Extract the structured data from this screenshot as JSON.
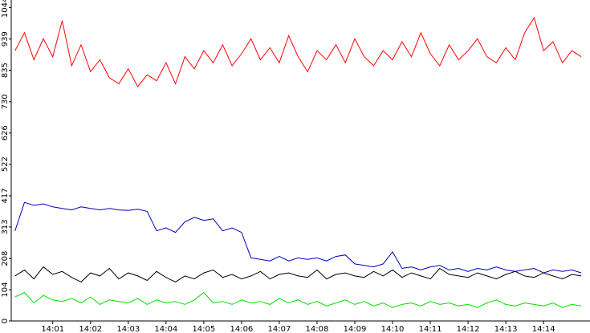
{
  "chart_data": {
    "type": "line",
    "x": [
      0,
      0.25,
      0.5,
      0.75,
      1,
      1.25,
      1.5,
      1.75,
      2,
      2.25,
      2.5,
      2.75,
      3,
      3.25,
      3.5,
      3.75,
      4,
      4.25,
      4.5,
      4.75,
      5,
      5.25,
      5.5,
      5.75,
      6,
      6.25,
      6.5,
      6.75,
      7,
      7.25,
      7.5,
      7.75,
      8,
      8.25,
      8.5,
      8.75,
      9,
      9.25,
      9.5,
      9.75,
      10,
      10.25,
      10.5,
      10.75,
      11,
      11.25,
      11.5,
      11.75,
      12,
      12.25,
      12.5,
      12.75,
      13,
      13.25,
      13.5,
      13.75,
      14,
      14.25,
      14.5,
      14.75,
      15
    ],
    "series": [
      {
        "color": "#ff0000",
        "values": [
          900,
          960,
          870,
          940,
          880,
          1000,
          850,
          920,
          830,
          870,
          810,
          790,
          840,
          780,
          820,
          800,
          860,
          790,
          880,
          840,
          900,
          860,
          920,
          850,
          890,
          940,
          870,
          910,
          860,
          950,
          880,
          830,
          900,
          870,
          920,
          860,
          940,
          880,
          850,
          900,
          870,
          930,
          880,
          960,
          890,
          850,
          920,
          870,
          900,
          940,
          880,
          860,
          910,
          870,
          960,
          1010,
          900,
          930,
          860,
          900,
          880
        ]
      },
      {
        "color": "#0000c0",
        "values": [
          300,
          395,
          385,
          390,
          380,
          375,
          370,
          380,
          375,
          370,
          375,
          370,
          368,
          372,
          365,
          300,
          310,
          295,
          330,
          345,
          335,
          340,
          300,
          310,
          295,
          210,
          205,
          200,
          215,
          200,
          210,
          205,
          210,
          200,
          215,
          220,
          190,
          185,
          180,
          190,
          230,
          175,
          180,
          170,
          180,
          185,
          170,
          175,
          165,
          175,
          170,
          180,
          170,
          165,
          170,
          175,
          160,
          170,
          165,
          170,
          160
        ]
      },
      {
        "color": "#000000",
        "values": [
          150,
          170,
          140,
          180,
          155,
          165,
          145,
          130,
          160,
          150,
          175,
          140,
          160,
          150,
          135,
          165,
          145,
          130,
          150,
          140,
          160,
          170,
          145,
          155,
          140,
          150,
          165,
          140,
          155,
          160,
          150,
          145,
          170,
          140,
          155,
          160,
          150,
          145,
          165,
          150,
          170,
          145,
          160,
          150,
          140,
          175,
          155,
          150,
          145,
          160,
          150,
          140,
          155,
          165,
          150,
          145,
          160,
          150,
          140,
          155,
          150
        ]
      },
      {
        "color": "#00e000",
        "values": [
          80,
          95,
          60,
          85,
          70,
          65,
          75,
          60,
          80,
          55,
          70,
          65,
          60,
          75,
          55,
          70,
          60,
          65,
          55,
          70,
          95,
          60,
          65,
          55,
          70,
          60,
          65,
          55,
          75,
          60,
          70,
          55,
          65,
          50,
          60,
          70,
          55,
          65,
          50,
          60,
          45,
          55,
          60,
          50,
          65,
          55,
          60,
          50,
          55,
          45,
          60,
          70,
          55,
          50,
          60,
          55,
          50,
          60,
          45,
          55,
          50
        ]
      }
    ],
    "xlim": [
      -0.1,
      15.23
    ],
    "xticks": [
      {
        "value": 1,
        "label": "14:01"
      },
      {
        "value": 2,
        "label": "14:02"
      },
      {
        "value": 3,
        "label": "14:03"
      },
      {
        "value": 4,
        "label": "14:04"
      },
      {
        "value": 5,
        "label": "14:05"
      },
      {
        "value": 6,
        "label": "14:06"
      },
      {
        "value": 7,
        "label": "14:07"
      },
      {
        "value": 8,
        "label": "14:08"
      },
      {
        "value": 9,
        "label": "14:09"
      },
      {
        "value": 10,
        "label": "14:10"
      },
      {
        "value": 11,
        "label": "14:11"
      },
      {
        "value": 12,
        "label": "14:12"
      },
      {
        "value": 13,
        "label": "14:13"
      },
      {
        "value": 14,
        "label": "14:14"
      }
    ],
    "ylim": [
      0,
      1069
    ],
    "yticks": [
      0,
      104,
      208,
      313,
      417,
      522,
      626,
      730,
      835,
      939,
      1044
    ]
  }
}
